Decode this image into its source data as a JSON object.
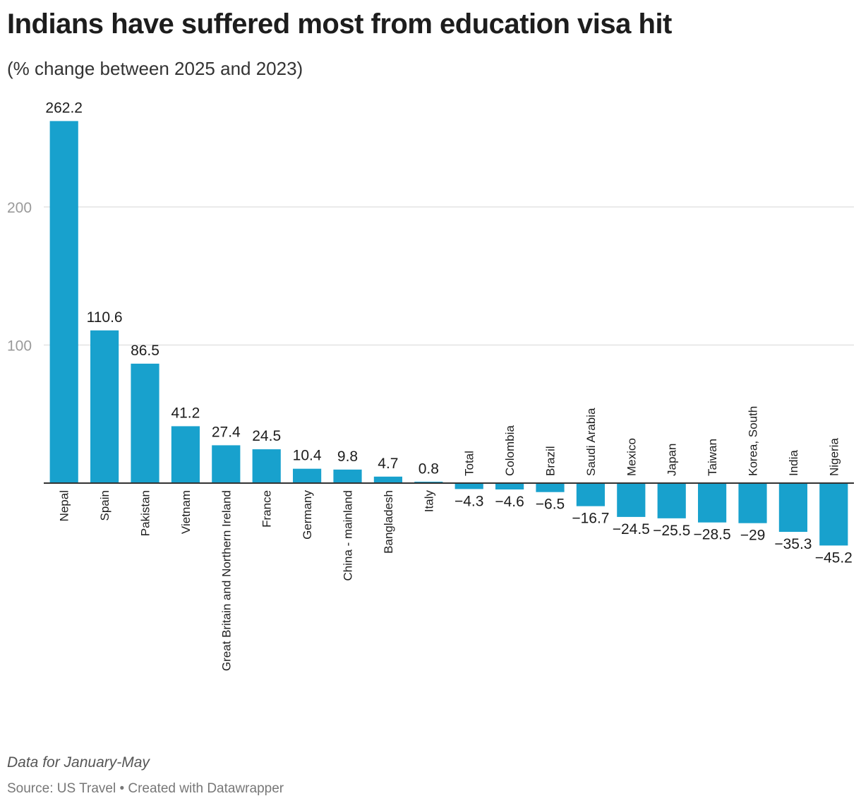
{
  "chart_data": {
    "type": "bar",
    "title": "Indians have suffered most from education visa hit",
    "subtitle": "(% change between 2025 and 2023)",
    "categories": [
      "Nepal",
      "Spain",
      "Pakistan",
      "Vietnam",
      "Great Britain and Northern Ireland",
      "France",
      "Germany",
      "China - mainland",
      "Bangladesh",
      "Italy",
      "Total",
      "Colombia",
      "Brazil",
      "Saudi Arabia",
      "Mexico",
      "Japan",
      "Taiwan",
      "Korea, South",
      "India",
      "Nigeria"
    ],
    "values": [
      262.2,
      110.6,
      86.5,
      41.2,
      27.4,
      24.5,
      10.4,
      9.8,
      4.7,
      0.8,
      -4.3,
      -4.6,
      -6.5,
      -16.7,
      -24.5,
      -25.5,
      -28.5,
      -29,
      -35.3,
      -45.2
    ],
    "value_labels": [
      "262.2",
      "110.6",
      "86.5",
      "41.2",
      "27.4",
      "24.5",
      "10.4",
      "9.8",
      "4.7",
      "0.8",
      "−4.3",
      "−4.6",
      "−6.5",
      "−16.7",
      "−24.5",
      "−25.5",
      "−28.5",
      "−29",
      "−35.3",
      "−45.2"
    ],
    "y_ticks": [
      100,
      200
    ],
    "y_tick_labels": [
      "100",
      "200"
    ],
    "ylim": [
      -48,
      272
    ],
    "grid": true,
    "bar_color": "#18a1cd"
  },
  "note": "Data for January-May",
  "source": "Source: US Travel • Created with Datawrapper"
}
